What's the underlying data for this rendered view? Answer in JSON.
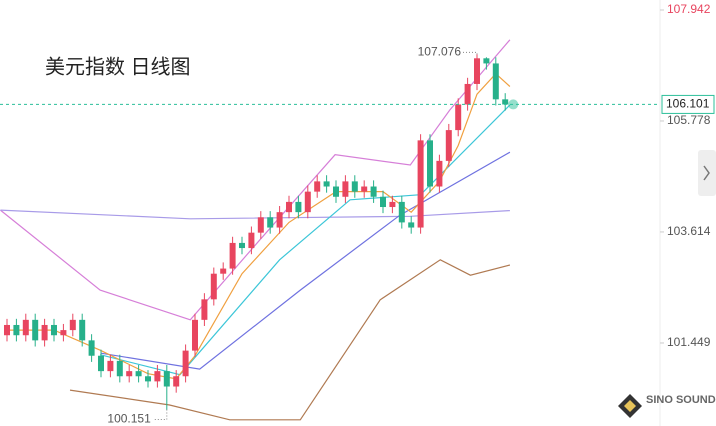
{
  "chart_data": {
    "type": "candlestick",
    "title": "美元指数 日线图",
    "up_color": "#e8455f",
    "down_color": "#26b08a",
    "ylim": [
      99.83,
      108.137
    ],
    "yticks": [
      107.942,
      105.778,
      103.614,
      101.449
    ],
    "last_price": 106.101,
    "last_price_color": "#2bbf9a",
    "open": [
      101.6,
      101.8,
      101.6,
      101.9,
      101.5,
      101.8,
      101.6,
      101.7,
      101.9,
      101.5,
      101.2,
      100.9,
      101.1,
      100.8,
      100.9,
      100.8,
      100.7,
      100.9,
      100.6,
      100.8,
      101.3,
      101.9,
      102.3,
      102.8,
      102.9,
      103.4,
      103.3,
      103.6,
      103.9,
      103.7,
      104.0,
      104.2,
      104.0,
      104.4,
      104.6,
      104.5,
      104.3,
      104.6,
      104.4,
      104.5,
      104.3,
      104.1,
      104.2,
      103.8,
      103.7,
      105.4,
      104.5,
      105.0,
      105.6,
      106.1,
      106.5,
      107.0,
      106.9,
      106.2
    ],
    "high": [
      101.92,
      101.92,
      102.02,
      102.02,
      101.92,
      101.92,
      101.82,
      102.02,
      102.02,
      101.62,
      101.32,
      101.22,
      101.22,
      101.02,
      101.02,
      100.92,
      101.02,
      101.02,
      100.92,
      101.42,
      102.02,
      102.42,
      102.92,
      103.02,
      103.52,
      103.52,
      103.72,
      104.02,
      104.02,
      104.12,
      104.32,
      104.32,
      104.52,
      104.72,
      104.72,
      104.62,
      104.72,
      104.72,
      104.62,
      104.62,
      104.42,
      104.32,
      104.32,
      103.92,
      105.52,
      105.52,
      105.12,
      105.72,
      106.22,
      106.62,
      107.076,
      107.02,
      107.02,
      106.32
    ],
    "low": [
      101.48,
      101.48,
      101.48,
      101.38,
      101.38,
      101.48,
      101.48,
      101.58,
      101.38,
      101.08,
      100.78,
      100.78,
      100.68,
      100.68,
      100.68,
      100.58,
      100.58,
      100.151,
      100.48,
      100.68,
      101.18,
      101.78,
      102.18,
      102.68,
      102.78,
      103.18,
      103.18,
      103.48,
      103.58,
      103.58,
      103.88,
      103.88,
      103.88,
      104.28,
      104.38,
      104.18,
      104.18,
      104.28,
      104.28,
      104.18,
      103.98,
      103.98,
      103.68,
      103.58,
      103.58,
      104.38,
      104.38,
      104.88,
      105.48,
      105.98,
      106.38,
      106.78,
      106.08,
      105.98
    ],
    "close": [
      101.8,
      101.6,
      101.9,
      101.5,
      101.8,
      101.6,
      101.7,
      101.9,
      101.5,
      101.2,
      100.9,
      101.1,
      100.8,
      100.9,
      100.8,
      100.7,
      100.9,
      100.6,
      100.8,
      101.3,
      101.9,
      102.3,
      102.8,
      102.9,
      103.4,
      103.3,
      103.6,
      103.9,
      103.7,
      104.0,
      104.2,
      104.0,
      104.4,
      104.6,
      104.5,
      104.3,
      104.6,
      104.4,
      104.5,
      104.3,
      104.1,
      104.2,
      103.8,
      103.7,
      105.4,
      104.5,
      105.0,
      105.6,
      106.1,
      106.5,
      107.0,
      106.9,
      106.2,
      106.1
    ],
    "lines": [
      {
        "color": "#d67fd8",
        "x": [
          -0.7,
          9.9,
          19.5,
          26.9,
          34.9,
          42.9,
          47.1,
          53.5
        ],
        "values": [
          104.04,
          102.48,
          101.9,
          103.46,
          105.12,
          104.92,
          105.99,
          107.36
        ]
      },
      {
        "color": "#a89be8",
        "x": [
          -0.7,
          19.5,
          42.9,
          53.5
        ],
        "values": [
          104.04,
          103.87,
          103.92,
          104.03
        ]
      },
      {
        "color": "#6f72e0",
        "x": [
          10.0,
          20.5,
          31.2,
          41.8,
          53.5
        ],
        "values": [
          101.25,
          100.94,
          102.48,
          103.94,
          105.17
        ]
      },
      {
        "color": "#3cc6d8",
        "x": [
          9.9,
          18.4,
          29.0,
          36.5,
          44.0,
          53.5
        ],
        "values": [
          101.22,
          100.83,
          103.07,
          104.24,
          104.34,
          106.09
        ]
      },
      {
        "color": "#f0a040",
        "x": [
          0,
          5,
          10,
          15,
          18,
          20,
          25,
          30,
          35,
          40,
          43,
          46,
          48,
          50,
          52,
          53.5
        ],
        "values": [
          101.7,
          101.7,
          101.3,
          100.85,
          100.75,
          101.2,
          102.8,
          103.8,
          104.4,
          104.4,
          104.0,
          104.6,
          105.3,
          106.3,
          106.7,
          106.45
        ]
      },
      {
        "color": "#b07a52",
        "x": [
          6.7,
          17.3,
          23.7,
          31.2,
          39.7,
          46.1,
          49.3,
          53.5
        ],
        "values": [
          100.53,
          100.24,
          99.95,
          99.95,
          102.29,
          103.07,
          102.77,
          102.97
        ]
      }
    ],
    "annotations": [
      {
        "text": "107.076",
        "index": 50,
        "value": 107.076
      },
      {
        "text": "100.151",
        "index": 17,
        "value": 100.151
      }
    ],
    "watermark": "SINO SOUND"
  }
}
